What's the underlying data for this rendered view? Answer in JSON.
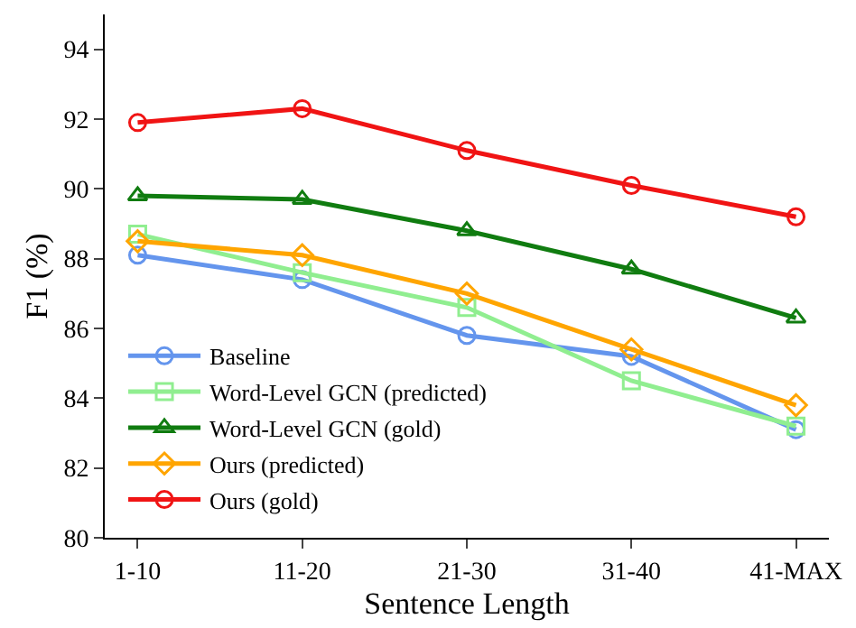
{
  "chart_data": {
    "type": "line",
    "xlabel": "Sentence Length",
    "ylabel": "F1 (%)",
    "categories": [
      "1-10",
      "11-20",
      "21-30",
      "31-40",
      "41-MAX"
    ],
    "series": [
      {
        "name": "Baseline",
        "color": "#6495ed",
        "marker": "circle",
        "values": [
          88.1,
          87.4,
          85.8,
          85.2,
          83.1
        ]
      },
      {
        "name": "Word-Level GCN (predicted)",
        "color": "#90ee90",
        "marker": "square",
        "values": [
          88.7,
          87.6,
          86.6,
          84.5,
          83.2
        ]
      },
      {
        "name": "Word-Level GCN (gold)",
        "color": "#107c10",
        "marker": "triangle",
        "values": [
          89.8,
          89.7,
          88.8,
          87.7,
          86.3
        ]
      },
      {
        "name": "Ours (predicted)",
        "color": "#ffa500",
        "marker": "diamond",
        "values": [
          88.5,
          88.1,
          87.0,
          85.4,
          83.8
        ]
      },
      {
        "name": "Ours (gold)",
        "color": "#f01414",
        "marker": "circle",
        "values": [
          91.9,
          92.3,
          91.1,
          90.1,
          89.2
        ]
      }
    ],
    "ylim": [
      80,
      95
    ],
    "yticks": [
      80,
      82,
      84,
      86,
      88,
      90,
      92,
      94
    ],
    "legend": "bottom left",
    "line_style": "solid"
  }
}
